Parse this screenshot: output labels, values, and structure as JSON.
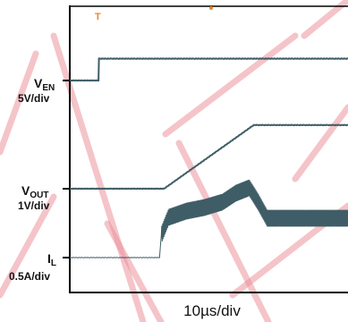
{
  "chart_data": {
    "type": "line",
    "title": "",
    "xlabel": "10µs/div",
    "x_unit": "µs",
    "xlim": [
      0,
      31
    ],
    "trigger_marker": "T",
    "grid": false,
    "colors": {
      "trace": "#3f5d66",
      "watermark": "#e8808a",
      "trigger": "#e8862e",
      "frame": "#000000"
    },
    "series": [
      {
        "name": "V_EN",
        "channel_label": {
          "main": "V",
          "sub": "EN"
        },
        "scale": "5V/div",
        "unit": "V",
        "ylim": [
          -2,
          18
        ],
        "x": [
          0,
          3.2,
          3.2,
          31
        ],
        "y": [
          0,
          0,
          5,
          5
        ]
      },
      {
        "name": "V_OUT",
        "channel_label": {
          "main": "V",
          "sub": "OUT"
        },
        "scale": "1V/div",
        "unit": "V",
        "ylim": [
          -1,
          4
        ],
        "x": [
          0,
          10.5,
          20.5,
          31
        ],
        "y": [
          0,
          0,
          1.95,
          1.95
        ]
      },
      {
        "name": "I_L",
        "channel_label": {
          "main": "I",
          "sub": "L"
        },
        "scale": "0.5A/div",
        "unit": "A",
        "ylim": [
          -0.5,
          1.8
        ],
        "x": [
          0,
          10,
          10.2,
          11,
          13,
          15,
          17,
          18.5,
          20,
          21,
          22,
          25,
          28,
          31
        ],
        "y": [
          0,
          0,
          0.25,
          0.45,
          0.52,
          0.56,
          0.62,
          0.72,
          0.78,
          0.62,
          0.44,
          0.44,
          0.44,
          0.44
        ]
      }
    ]
  }
}
